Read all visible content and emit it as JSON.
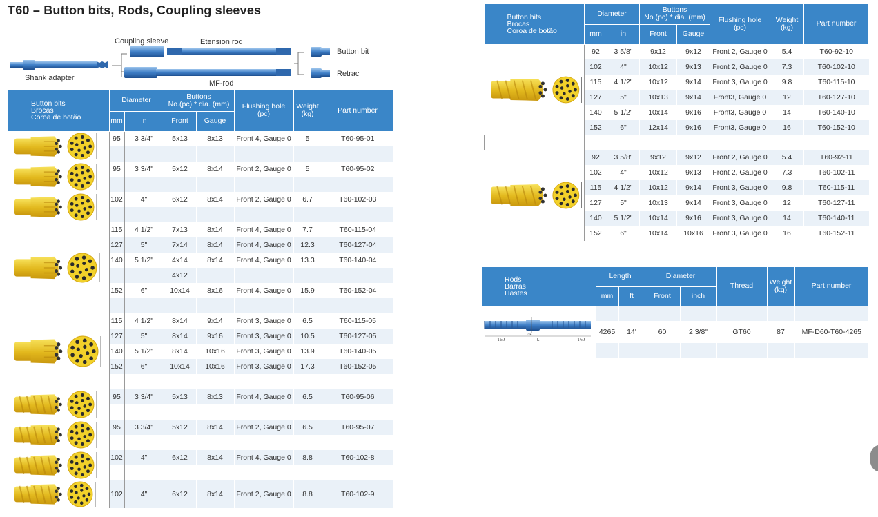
{
  "title": "T60 – Button bits, Rods, Coupling sleeves",
  "diagram": {
    "coupling_sleeve": "Coupling sleeve",
    "extension_rod": "Etension rod",
    "shank_adapter": "Shank adapter",
    "mf_rod": "MF-rod",
    "button_bit": "Button bit",
    "retrac": "Retrac"
  },
  "headers": {
    "bits_cat": [
      "Button bits",
      "Brocas",
      "Coroa de botão"
    ],
    "diameter": "Diameter",
    "mm": "mm",
    "in": "in",
    "buttons": [
      "Buttons",
      "No.(pc) * dia. (mm)"
    ],
    "front": "Front",
    "gauge": "Gauge",
    "flushing": [
      "Flushing hole",
      "(pc)"
    ],
    "weight": [
      "Weight",
      "(kg)"
    ],
    "part": "Part number",
    "rods_cat": [
      "Rods",
      "Barras",
      "Hastes"
    ],
    "length": "Length",
    "ft": "ft",
    "inch": "inch",
    "thread": "Thread"
  },
  "left_table": [
    {
      "mm": "95",
      "in": "3 3/4\"",
      "front": "5x13",
      "gauge": "8x13",
      "flush": "Front 4, Gauge 0",
      "weight": "5",
      "part": "T60-95-01"
    },
    {
      "mm": "",
      "in": "",
      "front": "",
      "gauge": "",
      "flush": "",
      "weight": "",
      "part": ""
    },
    {
      "mm": "95",
      "in": "3 3/4\"",
      "front": "5x12",
      "gauge": "8x14",
      "flush": "Front 2, Gauge 0",
      "weight": "5",
      "part": "T60-95-02"
    },
    {
      "mm": "",
      "in": "",
      "front": "",
      "gauge": "",
      "flush": "",
      "weight": "",
      "part": ""
    },
    {
      "mm": "102",
      "in": "4\"",
      "front": "6x12",
      "gauge": "8x14",
      "flush": "Front 2, Gauge 0",
      "weight": "6.7",
      "part": "T60-102-03"
    },
    {
      "mm": "",
      "in": "",
      "front": "",
      "gauge": "",
      "flush": "",
      "weight": "",
      "part": ""
    },
    {
      "mm": "115",
      "in": "4 1/2\"",
      "front": "7x13",
      "gauge": "8x14",
      "flush": "Front 4, Gauge 0",
      "weight": "7.7",
      "part": "T60-115-04"
    },
    {
      "mm": "127",
      "in": "5\"",
      "front": "7x14",
      "gauge": "8x14",
      "flush": "Front 4, Gauge 0",
      "weight": "12.3",
      "part": "T60-127-04"
    },
    {
      "mm": "140",
      "in": "5 1/2\"",
      "front": "4x14",
      "gauge": "8x14",
      "flush": "Front 4, Gauge 0",
      "weight": "13.3",
      "part": "T60-140-04"
    },
    {
      "mm": "",
      "in": "",
      "front": "4x12",
      "gauge": "",
      "flush": "",
      "weight": "",
      "part": ""
    },
    {
      "mm": "152",
      "in": "6\"",
      "front": "10x14",
      "gauge": "8x16",
      "flush": "Front 4, Gauge 0",
      "weight": "15.9",
      "part": "T60-152-04"
    },
    {
      "mm": "",
      "in": "",
      "front": "",
      "gauge": "",
      "flush": "",
      "weight": "",
      "part": ""
    },
    {
      "mm": "115",
      "in": "4 1/2\"",
      "front": "8x14",
      "gauge": "9x14",
      "flush": "Front 3, Gauge 0",
      "weight": "6.5",
      "part": "T60-115-05"
    },
    {
      "mm": "127",
      "in": "5\"",
      "front": "8x14",
      "gauge": "9x16",
      "flush": "Front 3, Gauge 0",
      "weight": "10.5",
      "part": "T60-127-05"
    },
    {
      "mm": "140",
      "in": "5 1/2\"",
      "front": "8x14",
      "gauge": "10x16",
      "flush": "Front 3, Gauge 0",
      "weight": "13.9",
      "part": "T60-140-05"
    },
    {
      "mm": "152",
      "in": "6\"",
      "front": "10x14",
      "gauge": "10x16",
      "flush": "Front 3, Gauge 0",
      "weight": "17.3",
      "part": "T60-152-05"
    },
    {
      "mm": "",
      "in": "",
      "front": "",
      "gauge": "",
      "flush": "",
      "weight": "",
      "part": ""
    },
    {
      "mm": "95",
      "in": "3 3/4\"",
      "front": "5x13",
      "gauge": "8x13",
      "flush": "Front 4, Gauge 0",
      "weight": "6.5",
      "part": "T60-95-06"
    },
    {
      "mm": "",
      "in": "",
      "front": "",
      "gauge": "",
      "flush": "",
      "weight": "",
      "part": ""
    },
    {
      "mm": "95",
      "in": "3 3/4\"",
      "front": "5x12",
      "gauge": "8x14",
      "flush": "Front 2, Gauge 0",
      "weight": "6.5",
      "part": "T60-95-07"
    },
    {
      "mm": "",
      "in": "",
      "front": "",
      "gauge": "",
      "flush": "",
      "weight": "",
      "part": ""
    },
    {
      "mm": "102",
      "in": "4\"",
      "front": "6x12",
      "gauge": "8x14",
      "flush": "Front 4, Gauge 0",
      "weight": "8.8",
      "part": "T60-102-8"
    },
    {
      "mm": "",
      "in": "",
      "front": "",
      "gauge": "",
      "flush": "",
      "weight": "",
      "part": ""
    },
    {
      "mm": "102",
      "in": "4\"",
      "front": "6x12",
      "gauge": "8x14",
      "flush": "Front 2, Gauge 0",
      "weight": "8.8",
      "part": "T60-102-9"
    }
  ],
  "right_table": [
    {
      "mm": "92",
      "in": "3 5/8\"",
      "front": "9x12",
      "gauge": "9x12",
      "flush": "Front 2, Gauge 0",
      "weight": "5.4",
      "part": "T60-92-10"
    },
    {
      "mm": "102",
      "in": "4\"",
      "front": "10x12",
      "gauge": "9x13",
      "flush": "Front 2, Gauge 0",
      "weight": "7.3",
      "part": "T60-102-10"
    },
    {
      "mm": "115",
      "in": "4 1/2\"",
      "front": "10x12",
      "gauge": "9x14",
      "flush": "Front 3, Gauge 0",
      "weight": "9.8",
      "part": "T60-115-10"
    },
    {
      "mm": "127",
      "in": "5\"",
      "front": "10x13",
      "gauge": "9x14",
      "flush": "Front3, Gauge 0",
      "weight": "12",
      "part": "T60-127-10"
    },
    {
      "mm": "140",
      "in": "5 1/2\"",
      "front": "10x14",
      "gauge": "9x16",
      "flush": "Front3, Gauge 0",
      "weight": "14",
      "part": "T60-140-10"
    },
    {
      "mm": "152",
      "in": "6\"",
      "front": "12x14",
      "gauge": "9x16",
      "flush": "Front3, Gauge 0",
      "weight": "16",
      "part": "T60-152-10"
    },
    {
      "mm": "",
      "in": "",
      "front": "",
      "gauge": "",
      "flush": "",
      "weight": "",
      "part": ""
    },
    {
      "mm": "92",
      "in": "3 5/8\"",
      "front": "9x12",
      "gauge": "9x12",
      "flush": "Front 2, Gauge 0",
      "weight": "5.4",
      "part": "T60-92-11"
    },
    {
      "mm": "102",
      "in": "4\"",
      "front": "10x12",
      "gauge": "9x13",
      "flush": "Front 2, Gauge 0",
      "weight": "7.3",
      "part": "T60-102-11"
    },
    {
      "mm": "115",
      "in": "4 1/2\"",
      "front": "10x12",
      "gauge": "9x14",
      "flush": "Front 3, Gauge 0",
      "weight": "9.8",
      "part": "T60-115-11"
    },
    {
      "mm": "127",
      "in": "5\"",
      "front": "10x13",
      "gauge": "9x14",
      "flush": "Front 3, Gauge 0",
      "weight": "12",
      "part": "T60-127-11"
    },
    {
      "mm": "140",
      "in": "5 1/2\"",
      "front": "10x14",
      "gauge": "9x16",
      "flush": "Front 3, Gauge 0",
      "weight": "14",
      "part": "T60-140-11"
    },
    {
      "mm": "152",
      "in": "6\"",
      "front": "10x14",
      "gauge": "10x16",
      "flush": "Front 3, Gauge 0",
      "weight": "16",
      "part": "T60-152-11"
    }
  ],
  "rods_table": [
    {
      "length_mm": "",
      "length_ft": "",
      "dia_front": "",
      "dia_inch": "",
      "thread": "",
      "weight": "",
      "part": ""
    },
    {
      "length_mm": "4265",
      "length_ft": "14'",
      "dia_front": "60",
      "dia_inch": "2 3/8\"",
      "thread": "GT60",
      "weight": "87",
      "part": "MF-D60-T60-4265"
    },
    {
      "length_mm": "",
      "length_ft": "",
      "dia_front": "",
      "dia_inch": "",
      "thread": "",
      "weight": "",
      "part": ""
    }
  ],
  "rod_drawing": {
    "left_label": "T60",
    "right_label": "T60",
    "length_label": "L",
    "dia_label": "∅F"
  },
  "colors": {
    "header_blue": "#3a86c8",
    "row_alt": "#eaf1f8",
    "bit_yellow": "#f2d12a",
    "rod_blue": "#3f7fc7"
  }
}
